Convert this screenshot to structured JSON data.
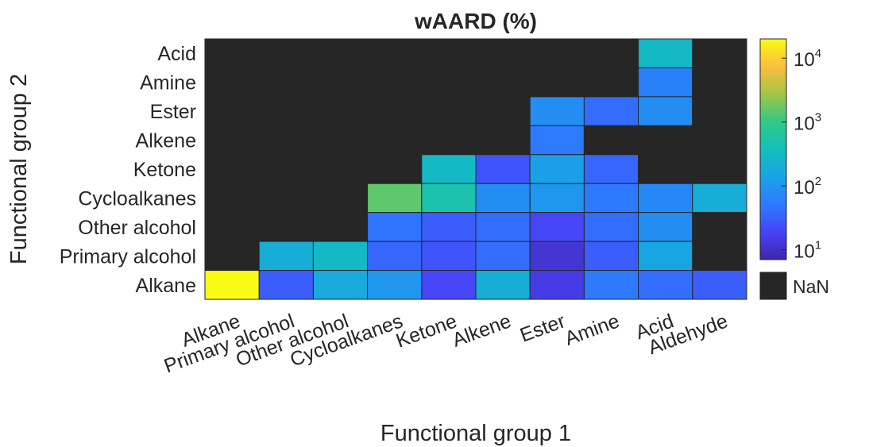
{
  "chart_data": {
    "type": "heatmap",
    "title": "wAARD (%)",
    "xlabel": "Functional group 1",
    "ylabel": "Functional group 2",
    "x_categories": [
      "Alkane",
      "Primary alcohol",
      "Other alcohol",
      "Cycloalkanes",
      "Ketone",
      "Alkene",
      "Ester",
      "Amine",
      "Acid",
      "Aldehyde"
    ],
    "y_categories": [
      "Acid",
      "Amine",
      "Ester",
      "Alkene",
      "Ketone",
      "Cycloalkanes",
      "Other alcohol",
      "Primary alcohol",
      "Alkane"
    ],
    "values": [
      [
        null,
        null,
        null,
        null,
        null,
        null,
        null,
        null,
        300,
        null
      ],
      [
        null,
        null,
        null,
        null,
        null,
        null,
        null,
        null,
        60,
        null
      ],
      [
        null,
        null,
        null,
        null,
        null,
        null,
        80,
        40,
        80,
        null
      ],
      [
        null,
        null,
        null,
        null,
        null,
        null,
        50,
        null,
        null,
        null
      ],
      [
        null,
        null,
        null,
        null,
        300,
        25,
        130,
        35,
        null,
        null
      ],
      [
        null,
        null,
        null,
        1500,
        500,
        80,
        100,
        50,
        70,
        200
      ],
      [
        null,
        null,
        null,
        45,
        30,
        40,
        20,
        40,
        80,
        null
      ],
      [
        null,
        200,
        300,
        35,
        25,
        40,
        12,
        30,
        150,
        null
      ],
      [
        20000,
        30,
        170,
        100,
        20,
        200,
        15,
        50,
        40,
        30
      ]
    ],
    "color_scale": "log",
    "clim": [
      7,
      20000
    ],
    "colormap": "parula",
    "colorbar_ticks": [
      {
        "base": "10",
        "exp": "1"
      },
      {
        "base": "10",
        "exp": "2"
      },
      {
        "base": "10",
        "exp": "3"
      },
      {
        "base": "10",
        "exp": "4"
      }
    ],
    "nan_color": "#262626",
    "nan_label": "NaN"
  }
}
